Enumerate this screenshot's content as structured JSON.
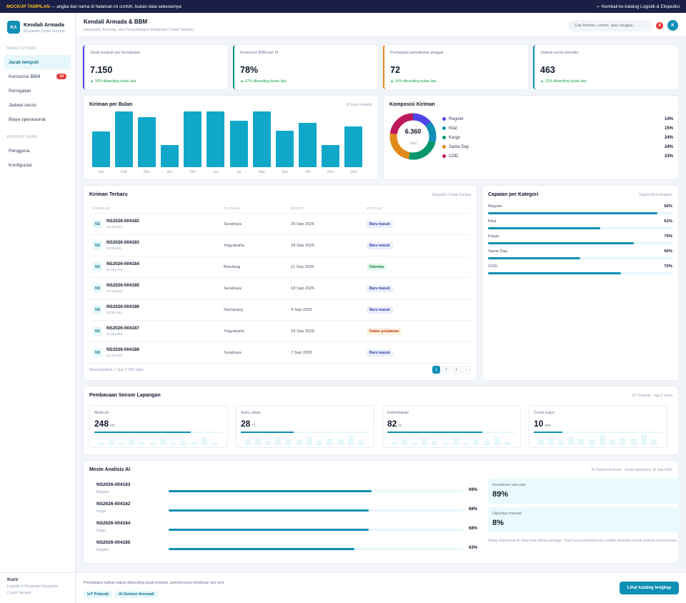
{
  "topbar": {
    "tag": "MOCKUP TAMPILAN",
    "notice": " — angka dan nama di halaman ini contoh, bukan data sebenarnya",
    "back_link": "⇠ Kembali ke katalog Logistik & Ekspedisi"
  },
  "brand": {
    "initials": "KA",
    "name": "Kendali Armada",
    "sub": "Ekspedisi Cepat Sampai"
  },
  "sidebar": {
    "section_main": "MENU UTAMA",
    "main_items": [
      {
        "label": "Jarak tempuh",
        "badge": ""
      },
      {
        "label": "Konsumsi BBM",
        "badge": "10"
      },
      {
        "label": "Peringatan",
        "badge": ""
      },
      {
        "label": "Jadwal servis",
        "badge": ""
      },
      {
        "label": "Biaya operasional",
        "badge": ""
      }
    ],
    "section_settings": "PENGATURAN",
    "settings_items": [
      {
        "label": "Pengguna"
      },
      {
        "label": "Konfigurasi"
      }
    ],
    "footer_name": "Kurir",
    "footer_sub": "Logistik & Ekspedisi Ekspedisi Cepat Sampai"
  },
  "header": {
    "title": "Kendali Armada & BBM",
    "subtitle": "Ekspedisi, Armada, dan Pergudangan Ekspedisi Cepat Sampai",
    "search_placeholder": "Cari kiriman, nomor, atau tanggal...",
    "notif_count": "8",
    "avatar_initial": "K"
  },
  "stats": [
    {
      "label": "Jarak tempuh per kendaraan",
      "value": "7.150",
      "delta": "▲ 16% dibanding bulan lalu",
      "color": "#4f46e5"
    },
    {
      "label": "Konsumsi BBM per rit",
      "value": "78%",
      "delta": "▲ 17% dibanding bulan lalu",
      "color": "#0d9488"
    },
    {
      "label": "Peringatan pemakaian janggal",
      "value": "72",
      "delta": "▲ 16% dibanding bulan lalu",
      "color": "#ea8a1a"
    },
    {
      "label": "Jadwal servis armada",
      "value": "463",
      "delta": "▲ 12% dibanding bulan lalu",
      "color": "#0e8fb5"
    }
  ],
  "chart_data": [
    {
      "type": "bar",
      "title": "Kiriman per Bulan",
      "note": "12 bulan terakhir",
      "categories": [
        "Jan",
        "Feb",
        "Mar",
        "Apr",
        "Mei",
        "Jun",
        "Jul",
        "Agu",
        "Sep",
        "Okt",
        "Nov",
        "Des"
      ],
      "values": [
        64,
        100,
        90,
        40,
        100,
        100,
        83,
        100,
        66,
        80,
        40,
        73
      ],
      "ylim": [
        0,
        100
      ],
      "color": "#10a7c9"
    },
    {
      "type": "pie",
      "title": "Komposisi Kiriman",
      "total_value": "6.360",
      "total_label": "total",
      "categories": [
        "Reguler",
        "Kilat",
        "Kargo",
        "Same Day",
        "COD"
      ],
      "values": [
        14,
        15,
        24,
        24,
        23
      ],
      "colors": [
        "#4f46e5",
        "#0e8fb5",
        "#059669",
        "#e08a1a",
        "#be185d"
      ]
    }
  ],
  "recent": {
    "title": "Kiriman Terbaru",
    "note": "Ekspedisi Cepat Sampai",
    "headers": [
      "KIRIMAN",
      "TUJUAN",
      "BERAT",
      "STATUS"
    ],
    "rows": [
      {
        "icon": "NS",
        "id": "NS2026-004182",
        "sub": "ID 001204",
        "dest": "Surabaya",
        "date": "25 Sep 2026",
        "status": "Baru masuk",
        "kind": "blue"
      },
      {
        "icon": "NS",
        "id": "NS2026-004183",
        "sub": "ID 001241",
        "dest": "Yogyakarta",
        "date": "24 Sep 2026",
        "status": "Baru masuk",
        "kind": "blue"
      },
      {
        "icon": "NS",
        "id": "NS2026-004184",
        "sub": "ID 001278",
        "dest": "Bandung",
        "date": "11 Sep 2026",
        "status": "Diterima",
        "kind": "green"
      },
      {
        "icon": "NS",
        "id": "NS2026-004185",
        "sub": "ID 001315",
        "dest": "Surabaya",
        "date": "18 Sep 2026",
        "status": "Baru masuk",
        "kind": "blue"
      },
      {
        "icon": "NS",
        "id": "NS2026-004186",
        "sub": "ID 001352",
        "dest": "Semarang",
        "date": "4 Sep 2026",
        "status": "Baru masuk",
        "kind": "blue"
      },
      {
        "icon": "NS",
        "id": "NS2026-004187",
        "sub": "ID 001389",
        "dest": "Yogyakarta",
        "date": "24 Sep 2026",
        "status": "Dalam perjalanan",
        "kind": "orange"
      },
      {
        "icon": "NS",
        "id": "NS2026-004188",
        "sub": "ID 001426",
        "dest": "Surabaya",
        "date": "7 Sep 2026",
        "status": "Baru masuk",
        "kind": "blue"
      }
    ],
    "footer": "Menampilkan 7 dari 2.439 data",
    "pages": [
      "1",
      "2",
      "3",
      "›"
    ]
  },
  "targets": {
    "title": "Capaian per Kategori",
    "note": "Target tahun berjalan",
    "items": [
      {
        "label": "Reguler",
        "pct": "92%",
        "value": 92
      },
      {
        "label": "Kilat",
        "pct": "61%",
        "value": 61
      },
      {
        "label": "Kargo",
        "pct": "79%",
        "value": 79
      },
      {
        "label": "Same Day",
        "pct": "50%",
        "value": 50
      },
      {
        "label": "COD",
        "pct": "72%",
        "value": 72
      }
    ]
  },
  "sensors": {
    "title": "Pembacaan Sensor Lapangan",
    "note": "IoT Pelacak · tiap 5 menit",
    "items": [
      {
        "label": "Muka air",
        "value": "248",
        "unit": "cm",
        "level": 0.75
      },
      {
        "label": "Suhu udara",
        "value": "28",
        "unit": "°C",
        "level": 0.41
      },
      {
        "label": "Kelembapan",
        "value": "82",
        "unit": "%",
        "level": 0.74
      },
      {
        "label": "Curah hujan",
        "value": "10",
        "unit": "mm",
        "level": 0.22
      }
    ]
  },
  "ai": {
    "title": "Mesin Analisis AI",
    "note": "AI Deteksi Anomali · model diperbarui 15 Sep 2026",
    "rows": [
      {
        "id": "NS2026-004183",
        "cat": "Reguler",
        "pct": "69%",
        "value": 69
      },
      {
        "id": "NS2026-004182",
        "cat": "Kargo",
        "pct": "68%",
        "value": 68
      },
      {
        "id": "NS2026-004184",
        "cat": "Kargo",
        "pct": "68%",
        "value": 68
      },
      {
        "id": "NS2026-004185",
        "cat": "Reguler",
        "pct": "63%",
        "value": 63
      }
    ],
    "avg_label": "Keyakinan rata-rata",
    "avg_value": "89%",
    "manual_label": "Diperiksa manual",
    "manual_value": "8%",
    "disclaimer": "Setiap keputusan AI tetap bisa ditinjau petugas. Hasil yang keyakinannya rendah otomatis masuk antrean pemeriksaan."
  },
  "footer": {
    "text": "Pemakaian bahan bakar dibanding jarak tempuh, pemborosan ketahuan per unit.",
    "chips": [
      "IoT Pelacak",
      "AI Deteksi Anomali"
    ],
    "cta": "Lihat katalog lengkap"
  }
}
